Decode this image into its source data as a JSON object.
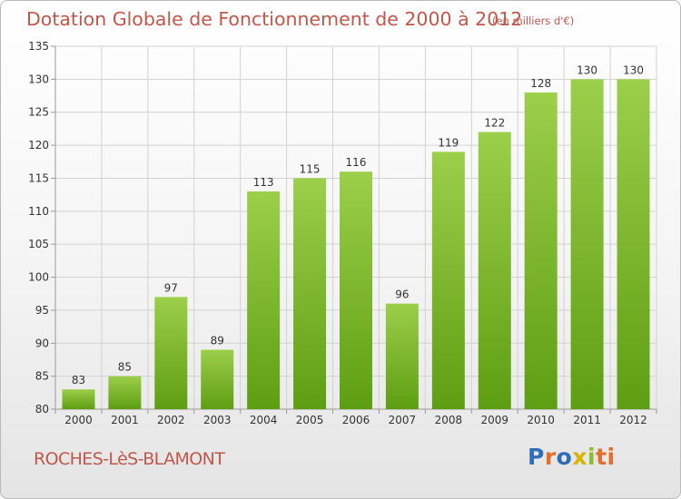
{
  "header": {
    "title": "Dotation Globale de Fonctionnement de 2000 à 2012",
    "unit": "(en milliers d'€)"
  },
  "commune": "ROCHES-LèS-BLAMONT",
  "logo": {
    "text": "Proxiti",
    "colors": [
      "#2f6db5",
      "#e3702a",
      "#2f6db5",
      "#d9b400",
      "#8cbc2a",
      "#e3702a",
      "#e3702a"
    ]
  },
  "chart_data": {
    "type": "bar",
    "title": "Dotation Globale de Fonctionnement de 2000 à 2012",
    "subtitle": "(en milliers d'€)",
    "categories": [
      "2000",
      "2001",
      "2002",
      "2003",
      "2004",
      "2005",
      "2006",
      "2007",
      "2008",
      "2009",
      "2010",
      "2011",
      "2012"
    ],
    "values": [
      83,
      85,
      97,
      89,
      113,
      115,
      116,
      96,
      119,
      122,
      128,
      130,
      130
    ],
    "ylim": [
      80,
      135
    ],
    "yticks": [
      80,
      85,
      90,
      95,
      100,
      105,
      110,
      115,
      120,
      125,
      130,
      135
    ],
    "grid": true,
    "bar_color_top": "#9ccf4a",
    "bar_color_bottom": "#5e9e12"
  }
}
